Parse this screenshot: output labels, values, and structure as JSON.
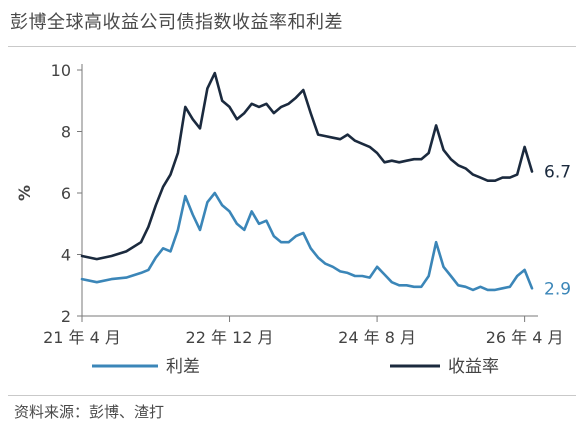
{
  "header": {
    "title": "彭博全球高收益公司债指数收益率和利差"
  },
  "footer": {
    "source": "资料来源：彭博、渣打"
  },
  "colors": {
    "spread": "#3b86b8",
    "yield": "#1b2a3e",
    "axis": "#7a7a7a"
  },
  "chart_data": {
    "type": "line",
    "title": "彭博全球高收益公司债指数收益率和利差",
    "ylabel": "%",
    "xlabel": "",
    "ylim": [
      2,
      10
    ],
    "yticks": [
      2,
      4,
      6,
      8,
      10
    ],
    "xlim": [
      "2021-04",
      "2026-05"
    ],
    "xtick_labels": [
      {
        "x": "2021-04",
        "label": "21 年 4 月"
      },
      {
        "x": "2022-12",
        "label": "22 年 12 月"
      },
      {
        "x": "2024-08",
        "label": "24 年 8 月"
      },
      {
        "x": "2026-04",
        "label": "26 年 4 月"
      }
    ],
    "legend_position": "bottom",
    "grid": false,
    "series": [
      {
        "name": "利差",
        "color": "#3b86b8",
        "end_label": "2.9",
        "points": [
          [
            "2021-04",
            3.2
          ],
          [
            "2021-06",
            3.1
          ],
          [
            "2021-08",
            3.2
          ],
          [
            "2021-10",
            3.25
          ],
          [
            "2021-12",
            3.4
          ],
          [
            "2022-01",
            3.5
          ],
          [
            "2022-02",
            3.9
          ],
          [
            "2022-03",
            4.2
          ],
          [
            "2022-04",
            4.1
          ],
          [
            "2022-05",
            4.8
          ],
          [
            "2022-06",
            5.9
          ],
          [
            "2022-07",
            5.3
          ],
          [
            "2022-08",
            4.8
          ],
          [
            "2022-09",
            5.7
          ],
          [
            "2022-10",
            6.0
          ],
          [
            "2022-11",
            5.6
          ],
          [
            "2022-12",
            5.4
          ],
          [
            "2023-01",
            5.0
          ],
          [
            "2023-02",
            4.8
          ],
          [
            "2023-03",
            5.4
          ],
          [
            "2023-04",
            5.0
          ],
          [
            "2023-05",
            5.1
          ],
          [
            "2023-06",
            4.6
          ],
          [
            "2023-07",
            4.4
          ],
          [
            "2023-08",
            4.4
          ],
          [
            "2023-09",
            4.6
          ],
          [
            "2023-10",
            4.7
          ],
          [
            "2023-11",
            4.2
          ],
          [
            "2023-12",
            3.9
          ],
          [
            "2024-01",
            3.7
          ],
          [
            "2024-02",
            3.6
          ],
          [
            "2024-03",
            3.45
          ],
          [
            "2024-04",
            3.4
          ],
          [
            "2024-05",
            3.3
          ],
          [
            "2024-06",
            3.3
          ],
          [
            "2024-07",
            3.25
          ],
          [
            "2024-08",
            3.6
          ],
          [
            "2024-09",
            3.35
          ],
          [
            "2024-10",
            3.1
          ],
          [
            "2024-11",
            3.0
          ],
          [
            "2024-12",
            3.0
          ],
          [
            "2025-01",
            2.95
          ],
          [
            "2025-02",
            2.95
          ],
          [
            "2025-03",
            3.3
          ],
          [
            "2025-04",
            4.4
          ],
          [
            "2025-05",
            3.6
          ],
          [
            "2025-06",
            3.3
          ],
          [
            "2025-07",
            3.0
          ],
          [
            "2025-08",
            2.95
          ],
          [
            "2025-09",
            2.85
          ],
          [
            "2025-10",
            2.95
          ],
          [
            "2025-11",
            2.85
          ],
          [
            "2025-12",
            2.85
          ],
          [
            "2026-01",
            2.9
          ],
          [
            "2026-02",
            2.95
          ],
          [
            "2026-03",
            3.3
          ],
          [
            "2026-04",
            3.5
          ],
          [
            "2026-05",
            2.9
          ]
        ]
      },
      {
        "name": "收益率",
        "color": "#1b2a3e",
        "end_label": "6.7",
        "points": [
          [
            "2021-04",
            3.95
          ],
          [
            "2021-06",
            3.85
          ],
          [
            "2021-08",
            3.95
          ],
          [
            "2021-10",
            4.1
          ],
          [
            "2021-12",
            4.4
          ],
          [
            "2022-01",
            4.9
          ],
          [
            "2022-02",
            5.6
          ],
          [
            "2022-03",
            6.2
          ],
          [
            "2022-04",
            6.6
          ],
          [
            "2022-05",
            7.3
          ],
          [
            "2022-06",
            8.8
          ],
          [
            "2022-07",
            8.4
          ],
          [
            "2022-08",
            8.1
          ],
          [
            "2022-09",
            9.4
          ],
          [
            "2022-10",
            9.9
          ],
          [
            "2022-11",
            9.0
          ],
          [
            "2022-12",
            8.8
          ],
          [
            "2023-01",
            8.4
          ],
          [
            "2023-02",
            8.6
          ],
          [
            "2023-03",
            8.9
          ],
          [
            "2023-04",
            8.8
          ],
          [
            "2023-05",
            8.9
          ],
          [
            "2023-06",
            8.6
          ],
          [
            "2023-07",
            8.8
          ],
          [
            "2023-08",
            8.9
          ],
          [
            "2023-09",
            9.1
          ],
          [
            "2023-10",
            9.35
          ],
          [
            "2023-11",
            8.6
          ],
          [
            "2023-12",
            7.9
          ],
          [
            "2024-01",
            7.85
          ],
          [
            "2024-02",
            7.8
          ],
          [
            "2024-03",
            7.75
          ],
          [
            "2024-04",
            7.9
          ],
          [
            "2024-05",
            7.7
          ],
          [
            "2024-06",
            7.6
          ],
          [
            "2024-07",
            7.5
          ],
          [
            "2024-08",
            7.3
          ],
          [
            "2024-09",
            7.0
          ],
          [
            "2024-10",
            7.05
          ],
          [
            "2024-11",
            7.0
          ],
          [
            "2024-12",
            7.05
          ],
          [
            "2025-01",
            7.1
          ],
          [
            "2025-02",
            7.1
          ],
          [
            "2025-03",
            7.3
          ],
          [
            "2025-04",
            8.2
          ],
          [
            "2025-05",
            7.4
          ],
          [
            "2025-06",
            7.1
          ],
          [
            "2025-07",
            6.9
          ],
          [
            "2025-08",
            6.8
          ],
          [
            "2025-09",
            6.6
          ],
          [
            "2025-10",
            6.5
          ],
          [
            "2025-11",
            6.4
          ],
          [
            "2025-12",
            6.4
          ],
          [
            "2026-01",
            6.5
          ],
          [
            "2026-02",
            6.5
          ],
          [
            "2026-03",
            6.6
          ],
          [
            "2026-04",
            7.5
          ],
          [
            "2026-05",
            6.7
          ]
        ]
      }
    ]
  }
}
